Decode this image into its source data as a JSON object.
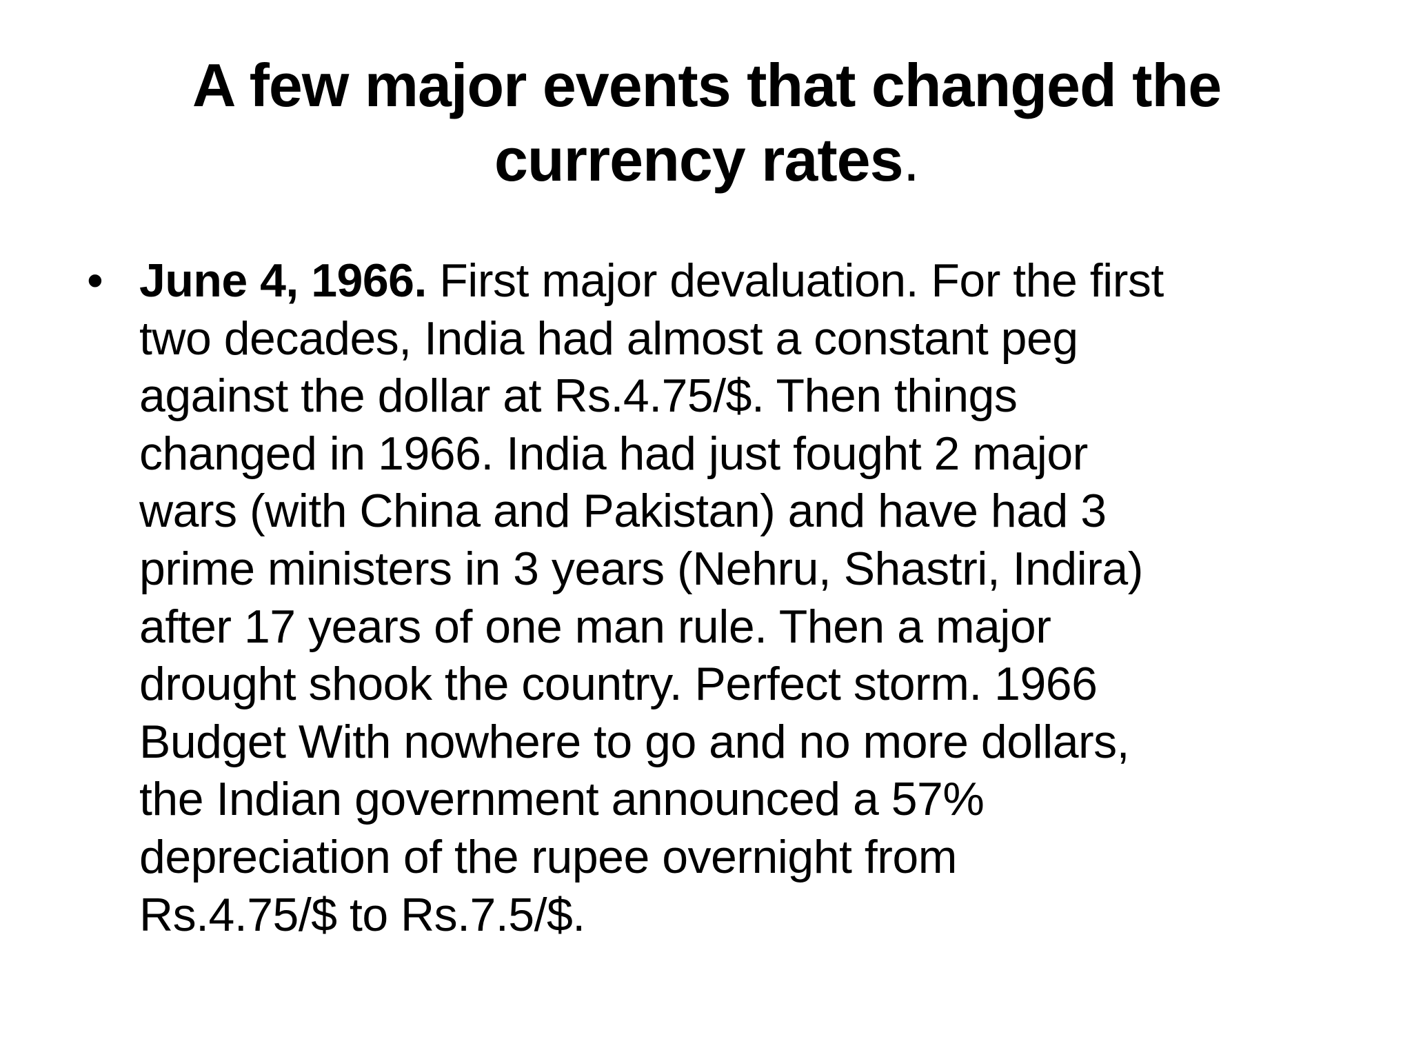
{
  "slide": {
    "title": {
      "main": "A few major events that changed the currency rates",
      "tail": "."
    },
    "bullets": [
      {
        "mark": "•",
        "lead": "June 4, 1966.",
        "lines": [
          " First major devaluation. For the first",
          "two decades, India had almost a constant peg",
          "against the dollar at Rs.4.75/$. Then things",
          "changed in 1966. India had just fought 2 major",
          "wars (with China and Pakistan) and have had 3",
          "prime ministers in 3 years (Nehru, Shastri, Indira)",
          "after 17 years of one man rule. Then a major",
          "drought shook the country. Perfect storm. 1966",
          "Budget With nowhere to go and no more dollars,",
          "the Indian government announced a 57%",
          "depreciation of the rupee overnight from",
          "Rs.4.75/$ to Rs.7.5/$."
        ]
      }
    ]
  }
}
